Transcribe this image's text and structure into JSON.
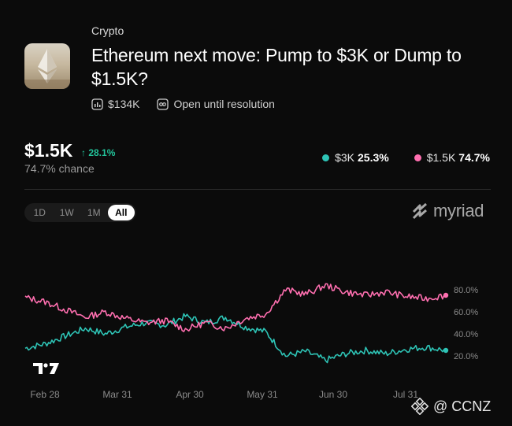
{
  "market": {
    "category": "Crypto",
    "title": "Ethereum next move: Pump to $3K or Dump to $1.5K?",
    "volume": "$134K",
    "status": "Open until resolution"
  },
  "lead": {
    "price": "$1.5K",
    "change": "↑ 28.1%",
    "chance": "74.7% chance"
  },
  "legend": {
    "items": [
      {
        "label": "$3K",
        "value": "25.3%",
        "color": "#2ec4b6"
      },
      {
        "label": "$1.5K",
        "value": "74.7%",
        "color": "#ff6fb0"
      }
    ]
  },
  "range_tabs": [
    "1D",
    "1W",
    "1M",
    "All"
  ],
  "range_selected": "All",
  "brand": "myriad",
  "watermark": "@ CCNZ",
  "chart_data": {
    "type": "line",
    "x_labels": [
      "Feb 28",
      "Mar 31",
      "Apr 30",
      "May 31",
      "Jun 30",
      "Jul 31"
    ],
    "y_ticks": [
      "80.0%",
      "60.0%",
      "40.0%",
      "20.0%"
    ],
    "ylim": [
      0,
      100
    ],
    "series": [
      {
        "name": "$3K",
        "color": "#2ec4b6",
        "x": [
          "Feb 28",
          "Mar 8",
          "Mar 16",
          "Mar 24",
          "Mar 31",
          "Apr 8",
          "Apr 16",
          "Apr 24",
          "Apr 30",
          "May 8",
          "May 16",
          "May 24",
          "May 31",
          "Jun 8",
          "Jun 16",
          "Jun 24",
          "Jun 30",
          "Jul 8",
          "Jul 16",
          "Jul 24",
          "Jul 31",
          "Aug 8"
        ],
        "values": [
          27,
          31,
          38,
          45,
          40,
          46,
          50,
          48,
          56,
          50,
          55,
          46,
          42,
          20,
          24,
          16,
          22,
          25,
          22,
          26,
          28,
          25
        ]
      },
      {
        "name": "$1.5K",
        "color": "#ff6fb0",
        "x": [
          "Feb 28",
          "Mar 8",
          "Mar 16",
          "Mar 24",
          "Mar 31",
          "Apr 8",
          "Apr 16",
          "Apr 24",
          "Apr 30",
          "May 8",
          "May 16",
          "May 24",
          "May 31",
          "Jun 8",
          "Jun 16",
          "Jun 24",
          "Jun 30",
          "Jul 8",
          "Jul 16",
          "Jul 24",
          "Jul 31",
          "Aug 8"
        ],
        "values": [
          73,
          69,
          62,
          55,
          60,
          54,
          50,
          52,
          44,
          50,
          45,
          54,
          58,
          80,
          76,
          84,
          78,
          75,
          78,
          74,
          72,
          75
        ]
      }
    ]
  }
}
